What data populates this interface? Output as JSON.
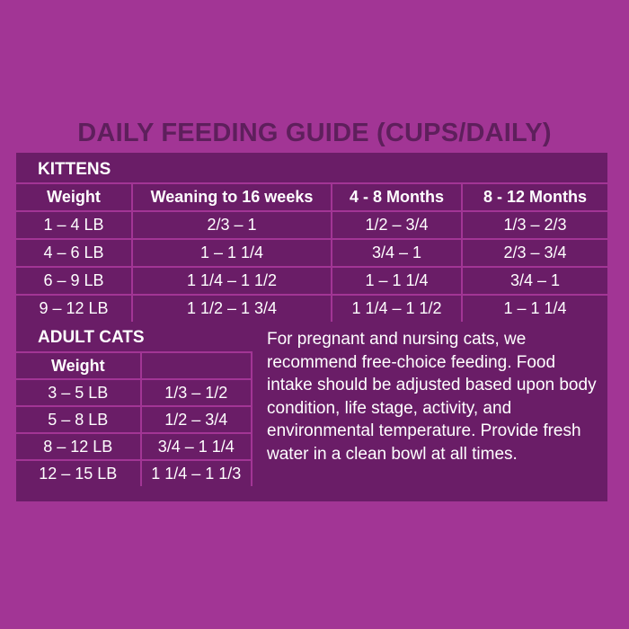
{
  "title": "DAILY FEEDING GUIDE (CUPS/DAILY)",
  "kittens": {
    "label": "KITTENS",
    "headers": [
      "Weight",
      "Weaning to 16 weeks",
      "4 - 8 Months",
      "8 - 12 Months"
    ],
    "rows": [
      [
        "1 – 4 LB",
        "2/3 – 1",
        "1/2 – 3/4",
        "1/3 – 2/3"
      ],
      [
        "4 – 6 LB",
        "1  – 1 1/4",
        "3/4 – 1",
        "2/3 – 3/4"
      ],
      [
        "6 – 9 LB",
        "1 1/4 – 1 1/2",
        "1 – 1 1/4",
        "3/4 – 1"
      ],
      [
        "9 – 12 LB",
        "1 1/2 – 1 3/4",
        "1 1/4 – 1 1/2",
        "1 – 1 1/4"
      ]
    ]
  },
  "adult": {
    "label": "ADULT CATS",
    "headers": [
      "Weight",
      ""
    ],
    "rows": [
      [
        "3 – 5 LB",
        "1/3 – 1/2"
      ],
      [
        "5 – 8 LB",
        "1/2  – 3/4"
      ],
      [
        "8 – 12 LB",
        "3/4 – 1 1/4"
      ],
      [
        "12 – 15 LB",
        "1 1/4 – 1 1/3"
      ]
    ]
  },
  "note": "For pregnant and nursing cats, we recommend free-choice feeding. Food intake should be adjusted based upon body condition, life stage, activity, and environmental temperature. Provide fresh water in a clean bowl at all times.",
  "colors": {
    "background": "#a23595",
    "panel": "#6a1d67",
    "title": "#5e1f5c"
  }
}
